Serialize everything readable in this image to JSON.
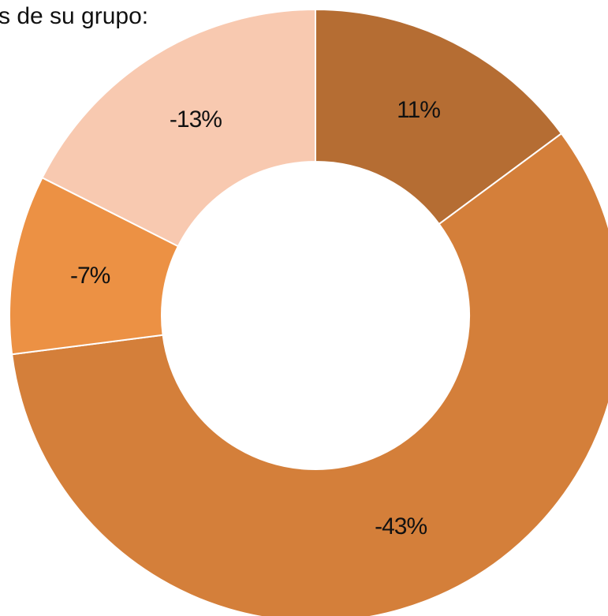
{
  "chart_data": {
    "type": "donut",
    "title": "s de su grupo:",
    "values": [
      11,
      -43,
      -7,
      -13
    ],
    "value_labels": [
      "11%",
      "-43%",
      "-7%",
      "-13%"
    ],
    "colors": [
      "#b56d33",
      "#d47f3a",
      "#ec9144",
      "#f8c9b0"
    ]
  }
}
